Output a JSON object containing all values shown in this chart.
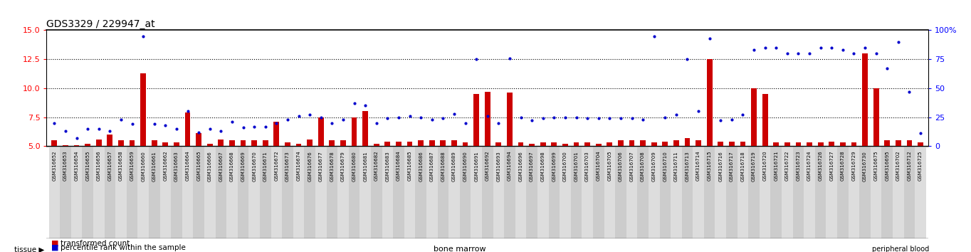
{
  "title": "GDS3329 / 229947_at",
  "left_yticks": [
    5,
    7.5,
    10,
    12.5,
    15
  ],
  "right_yticks": [
    0,
    25,
    50,
    75,
    100
  ],
  "left_ylim": [
    5,
    15
  ],
  "right_ylim": [
    0,
    100
  ],
  "bar_color": "#cc0000",
  "dot_color": "#0000cc",
  "bg_color": "#ffffff",
  "tissue_bm_color": "#ccffcc",
  "tissue_pb_color": "#55cc55",
  "xlabel_bg": "#dddddd",
  "sample_ids": [
    "GSM316652",
    "GSM316653",
    "GSM316654",
    "GSM316655",
    "GSM316656",
    "GSM316657",
    "GSM316658",
    "GSM316659",
    "GSM316660",
    "GSM316661",
    "GSM316662",
    "GSM316663",
    "GSM316664",
    "GSM316665",
    "GSM316666",
    "GSM316667",
    "GSM316668",
    "GSM316669",
    "GSM316670",
    "GSM316671",
    "GSM316672",
    "GSM316673",
    "GSM316674",
    "GSM316676",
    "GSM316677",
    "GSM316678",
    "GSM316679",
    "GSM316680",
    "GSM316681",
    "GSM316682",
    "GSM316683",
    "GSM316684",
    "GSM316685",
    "GSM316686",
    "GSM316687",
    "GSM316688",
    "GSM316689",
    "GSM316690",
    "GSM316691",
    "GSM316692",
    "GSM316693",
    "GSM316694",
    "GSM316696",
    "GSM316697",
    "GSM316698",
    "GSM316699",
    "GSM316700",
    "GSM316701",
    "GSM316703",
    "GSM316704",
    "GSM316705",
    "GSM316706",
    "GSM316707",
    "GSM316708",
    "GSM316709",
    "GSM316710",
    "GSM316711",
    "GSM316713",
    "GSM316714",
    "GSM316715",
    "GSM316716",
    "GSM316717",
    "GSM316718",
    "GSM316719",
    "GSM316720",
    "GSM316721",
    "GSM316722",
    "GSM316723",
    "GSM316724",
    "GSM316726",
    "GSM316727",
    "GSM316728",
    "GSM316729",
    "GSM316730",
    "GSM316675",
    "GSM316695",
    "GSM316702",
    "GSM316712",
    "GSM316725"
  ],
  "bar_values": [
    5.5,
    5.1,
    5.1,
    5.2,
    5.6,
    6.0,
    5.5,
    5.5,
    11.3,
    5.5,
    5.3,
    5.3,
    7.9,
    6.1,
    5.2,
    5.6,
    5.5,
    5.5,
    5.5,
    5.5,
    7.1,
    5.3,
    5.2,
    5.6,
    7.5,
    5.5,
    5.5,
    7.5,
    8.0,
    5.2,
    5.4,
    5.4,
    5.4,
    5.5,
    5.5,
    5.5,
    5.5,
    5.3,
    9.5,
    9.7,
    5.3,
    9.6,
    5.3,
    5.2,
    5.3,
    5.3,
    5.2,
    5.3,
    5.3,
    5.2,
    5.3,
    5.5,
    5.5,
    5.5,
    5.3,
    5.4,
    5.5,
    5.7,
    5.5,
    12.5,
    5.4,
    5.4,
    5.4,
    10.0,
    9.5,
    5.3,
    5.3,
    5.3,
    5.3,
    5.3,
    5.4,
    5.3,
    5.3,
    13.0,
    10.0,
    5.5,
    5.5,
    5.5,
    5.3
  ],
  "dot_values_pct": [
    20.0,
    13.0,
    7.0,
    15.0,
    15.0,
    13.0,
    23.0,
    19.0,
    95.0,
    19.0,
    18.0,
    15.0,
    30.0,
    12.0,
    15.0,
    13.0,
    21.0,
    16.0,
    17.0,
    17.0,
    20.0,
    23.0,
    26.0,
    27.0,
    25.0,
    20.0,
    23.0,
    37.0,
    35.0,
    20.0,
    24.0,
    25.0,
    26.0,
    25.0,
    23.0,
    24.0,
    28.0,
    20.0,
    75.0,
    26.0,
    20.0,
    76.0,
    25.0,
    22.0,
    24.0,
    25.0,
    25.0,
    25.0,
    24.0,
    24.0,
    24.0,
    24.0,
    24.0,
    23.0,
    95.0,
    25.0,
    27.0,
    75.0,
    30.0,
    93.0,
    22.0,
    23.0,
    27.0,
    83.0,
    85.0,
    85.0,
    80.0,
    80.0,
    80.0,
    85.0,
    85.0,
    83.0,
    80.0,
    85.0,
    80.0,
    67.0,
    90.0,
    47.0,
    11.0
  ],
  "bone_marrow_count": 74,
  "peripheral_blood_count": 5,
  "legend_items": [
    {
      "label": "transformed count",
      "color": "#cc0000"
    },
    {
      "label": "percentile rank within the sample",
      "color": "#0000cc"
    }
  ]
}
